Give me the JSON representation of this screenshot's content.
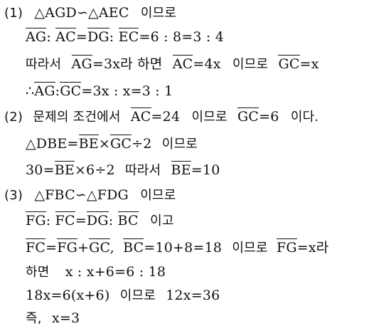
{
  "part1": {
    "num": "(1)",
    "sim": "△AGD∽△AEC",
    "suffix": "이므로",
    "ratio": {
      "a": "AG",
      "sep1": ":",
      "b": "AC",
      "eq": "=",
      "c": "DG",
      "sep2": ":",
      "d": "EC",
      "rest": "=6 : 8=3 : 4"
    },
    "let": {
      "pre": "따라서",
      "ag": "AG",
      "ag_val": "=3x라 하면",
      "ac": "AC",
      "ac_val": "=4x",
      "mid": "이므로",
      "gc": "GC",
      "gc_val": "=x"
    },
    "therefore": {
      "sym": "∴",
      "ag": "AG",
      "sep": ":",
      "gc": "GC",
      "rest": "=3x : x=3 : 1"
    }
  },
  "part2": {
    "num": "(2)",
    "intro": "문제의 조건에서",
    "ac": "AC",
    "ac_val": "=24",
    "mid": "이므로",
    "gc": "GC",
    "gc_val": "=6",
    "end": "이다.",
    "area": {
      "pre": "△DBE=",
      "be": "BE",
      "times": "×",
      "gc": "GC",
      "rest": "÷2",
      "suffix": "이므로"
    },
    "calc": {
      "pre": "30=",
      "be": "BE",
      "rest": "×6÷2",
      "mid": "따라서",
      "be2": "BE",
      "val": "=10"
    }
  },
  "part3": {
    "num": "(3)",
    "sim": "△FBC∽△FDG",
    "suffix": "이므로",
    "ratio": {
      "fg": "FG",
      "sep1": ":",
      "fc": "FC",
      "eq": "=",
      "dg": "DG",
      "sep2": ":",
      "bc": "BC",
      "suffix": "이고"
    },
    "sum": {
      "fc": "FC",
      "eq": "=",
      "fg": "FG",
      "plus": "+",
      "gc": "GC",
      "comma": ",",
      "bc": "BC",
      "bc_val": "=10+8=18",
      "mid": "이므로",
      "fg2": "FG",
      "fg_val": "=x라"
    },
    "prop": {
      "pre": "하면",
      "expr": "x : x+6=6 : 18"
    },
    "solve": {
      "eq1": "18x=6(x+6)",
      "mid": "이므로",
      "eq2": "12x=36"
    },
    "answer": {
      "pre": "즉,",
      "val": "x=3"
    }
  }
}
